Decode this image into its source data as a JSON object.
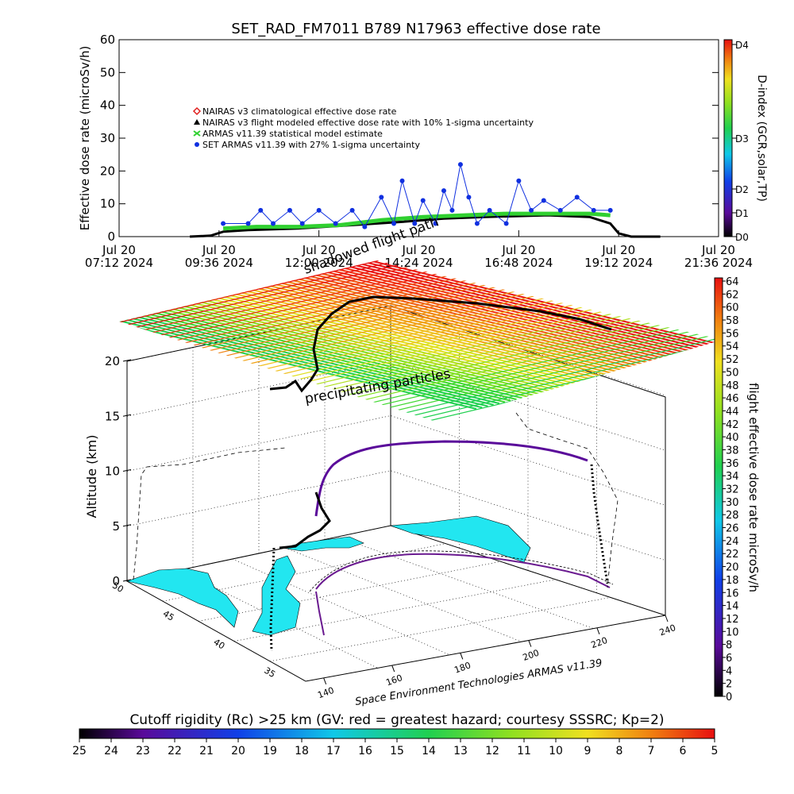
{
  "chart_data": [
    {
      "type": "scatter",
      "title": "SET_RAD_FM7011   B789 N17963 effective dose rate",
      "ylabel": "Effective dose rate (microSv/h)",
      "ylim": [
        0,
        60
      ],
      "yticks": [
        "0",
        "10",
        "20",
        "30",
        "40",
        "50",
        "60"
      ],
      "xticks": [
        [
          "Jul 20",
          "07:12 2024"
        ],
        [
          "Jul 20",
          "09:36 2024"
        ],
        [
          "Jul 20",
          "12:00 2024"
        ],
        [
          "Jul 20",
          "14:24 2024"
        ],
        [
          "Jul 20",
          "16:48 2024"
        ],
        [
          "Jul 20",
          "19:12 2024"
        ],
        [
          "Jul 20",
          "21:36 2024"
        ]
      ],
      "legend": [
        {
          "label": "NAIRAS v3 climatological effective dose rate",
          "color": "#e0201e",
          "marker": "diamond"
        },
        {
          "label": "NAIRAS v3 flight modeled effective dose rate with 10% 1-sigma uncertainty",
          "color": "#000000",
          "marker": "triangle"
        },
        {
          "label": "ARMAS v11.39 statistical model estimate",
          "color": "#30d030",
          "marker": "x"
        },
        {
          "label": "SET ARMAS v11.39 with 27% 1-sigma uncertainty",
          "color": "#1030e0",
          "marker": "circle"
        }
      ],
      "series": [
        {
          "name": "NAIRAS v3 flight modeled effective dose rate with 10% 1-sigma uncertainty",
          "points": [
            [
              8.9,
              0
            ],
            [
              9.4,
              0.3
            ],
            [
              9.7,
              1.5
            ],
            [
              10.3,
              2
            ],
            [
              11.5,
              2.5
            ],
            [
              12.8,
              3.5
            ],
            [
              14.0,
              4.5
            ],
            [
              15.0,
              5.5
            ],
            [
              16.0,
              6
            ],
            [
              17.5,
              6.5
            ],
            [
              18.5,
              6
            ],
            [
              19.0,
              4
            ],
            [
              19.2,
              1
            ],
            [
              19.5,
              0
            ],
            [
              20.2,
              0
            ]
          ]
        },
        {
          "name": "ARMAS v11.39 statistical model estimate",
          "points": [
            [
              9.7,
              2.5
            ],
            [
              10.5,
              3
            ],
            [
              11.5,
              3
            ],
            [
              12.5,
              3.5
            ],
            [
              13.5,
              5
            ],
            [
              14.5,
              6
            ],
            [
              15.5,
              6.5
            ],
            [
              16.5,
              7
            ],
            [
              17.5,
              7
            ],
            [
              18.5,
              7
            ],
            [
              19.0,
              6.5
            ]
          ]
        },
        {
          "name": "SET ARMAS v11.39 with 27% 1-sigma uncertainty",
          "points": [
            [
              9.7,
              4
            ],
            [
              10.3,
              4
            ],
            [
              10.6,
              8
            ],
            [
              10.9,
              4
            ],
            [
              11.3,
              8
            ],
            [
              11.6,
              4
            ],
            [
              12.0,
              8
            ],
            [
              12.4,
              4
            ],
            [
              12.8,
              8
            ],
            [
              13.1,
              3
            ],
            [
              13.5,
              12
            ],
            [
              13.8,
              4
            ],
            [
              14.0,
              17
            ],
            [
              14.3,
              4
            ],
            [
              14.5,
              11
            ],
            [
              14.8,
              4
            ],
            [
              15.0,
              14
            ],
            [
              15.2,
              8
            ],
            [
              15.4,
              22
            ],
            [
              15.6,
              12
            ],
            [
              15.8,
              4
            ],
            [
              16.1,
              8
            ],
            [
              16.5,
              4
            ],
            [
              16.8,
              17
            ],
            [
              17.1,
              8
            ],
            [
              17.4,
              11
            ],
            [
              17.8,
              8
            ],
            [
              18.2,
              12
            ],
            [
              18.6,
              8
            ],
            [
              19.0,
              8
            ]
          ]
        }
      ],
      "right_axis": {
        "label": "D-index (GCR,solar,TP)",
        "ticks": [
          "D0",
          "D1",
          "D2",
          "D3",
          "D4"
        ]
      }
    },
    {
      "type": "surface-3d",
      "zlabel": "Altitude (km)",
      "zticks": [
        "0",
        "5",
        "10",
        "15",
        "20"
      ],
      "y_ticks": [
        "50",
        "45",
        "40",
        "35"
      ],
      "x_ticks": [
        "140",
        "160",
        "180",
        "200",
        "220",
        "240"
      ],
      "annotations": [
        "shadowed flight path",
        "precipitating particles"
      ],
      "credit": "Space Environment Technologies ARMAS v11.39",
      "colorbar": {
        "label": "flight effective dose rate microSv/h",
        "ticks": [
          "0",
          "2",
          "4",
          "6",
          "8",
          "10",
          "12",
          "14",
          "16",
          "18",
          "20",
          "22",
          "24",
          "26",
          "28",
          "30",
          "32",
          "34",
          "36",
          "38",
          "40",
          "42",
          "44",
          "46",
          "48",
          "50",
          "52",
          "54",
          "56",
          "58",
          "60",
          "62",
          "64"
        ]
      }
    },
    {
      "type": "colorbar",
      "title": "Cutoff rigidity (Rc) >25 km (GV: red = greatest hazard; courtesy SSSRC; Kp=2)",
      "ticks": [
        "25",
        "24",
        "23",
        "22",
        "21",
        "20",
        "19",
        "18",
        "17",
        "16",
        "15",
        "14",
        "13",
        "12",
        "11",
        "10",
        "9",
        "8",
        "7",
        "6",
        "5"
      ]
    }
  ]
}
